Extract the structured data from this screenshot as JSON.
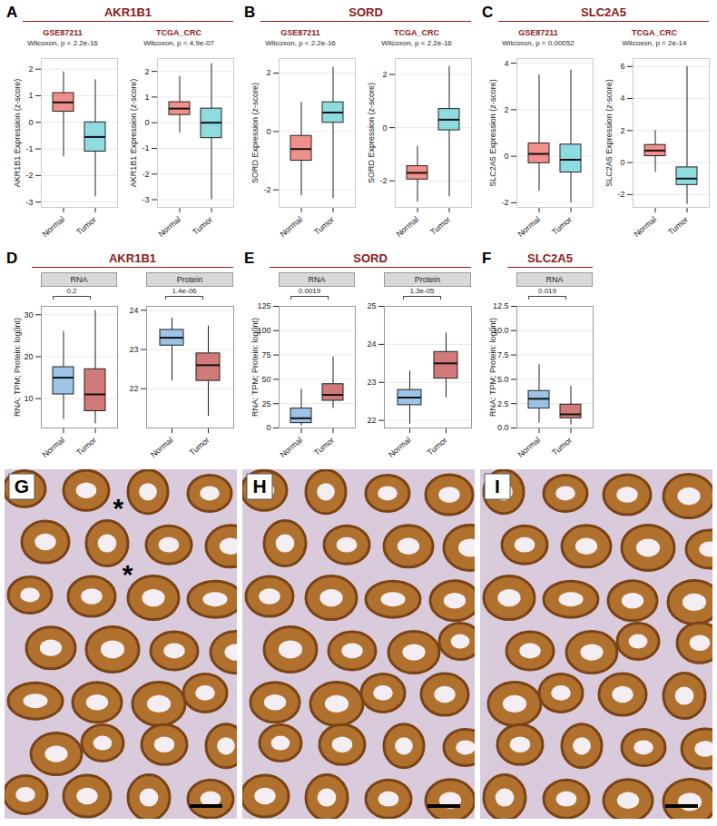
{
  "chart_data": [
    {
      "panel": "A",
      "title": "AKR1B1",
      "subplots": [
        {
          "type": "box",
          "subtitle": "GSE87211",
          "annotation": "Wilcoxon, p < 2.2e-16",
          "ylabel": "AKR1B1 Expression (z-score)",
          "categories": [
            "Normal",
            "Tumor"
          ],
          "colors": [
            "#e8453c",
            "#45c4cc"
          ],
          "boxes": [
            {
              "min": -1.3,
              "q1": 0.4,
              "median": 0.75,
              "q3": 1.1,
              "max": 1.9
            },
            {
              "min": -2.8,
              "q1": -1.1,
              "median": -0.55,
              "q3": 0.0,
              "max": 1.6
            }
          ],
          "ylim": [
            -3.2,
            2.4
          ],
          "yticks": [
            -3,
            -2,
            -1,
            0,
            1,
            2
          ],
          "grid": true
        },
        {
          "type": "box",
          "subtitle": "TCGA_CRC",
          "annotation": "Wilcoxon, p = 4.9e-07",
          "ylabel": "AKR1B1 Expression (z-score)",
          "categories": [
            "Normal",
            "Tumor"
          ],
          "colors": [
            "#e8453c",
            "#45c4cc"
          ],
          "boxes": [
            {
              "min": -0.4,
              "q1": 0.3,
              "median": 0.55,
              "q3": 0.8,
              "max": 1.8
            },
            {
              "min": -3.0,
              "q1": -0.6,
              "median": 0.0,
              "q3": 0.55,
              "max": 2.3
            }
          ],
          "ylim": [
            -3.3,
            2.5
          ],
          "yticks": [
            -3,
            -2,
            -1,
            0,
            1,
            2
          ],
          "grid": true
        }
      ]
    },
    {
      "panel": "B",
      "title": "SORD",
      "subplots": [
        {
          "type": "box",
          "subtitle": "GSE87211",
          "annotation": "Wilcoxon, p < 2.2e-16",
          "ylabel": "SORD Expression (z-score)",
          "categories": [
            "Normal",
            "Tumor"
          ],
          "colors": [
            "#e8453c",
            "#45c4cc"
          ],
          "boxes": [
            {
              "min": -2.2,
              "q1": -1.0,
              "median": -0.6,
              "q3": -0.15,
              "max": 1.0
            },
            {
              "min": -2.3,
              "q1": 0.3,
              "median": 0.65,
              "q3": 1.0,
              "max": 2.2
            }
          ],
          "ylim": [
            -2.6,
            2.5
          ],
          "yticks": [
            -2,
            0,
            2
          ],
          "grid": true
        },
        {
          "type": "box",
          "subtitle": "TCGA_CRC",
          "annotation": "Wilcoxon, p < 2.2e-16",
          "ylabel": "SORD Expression (z-score)",
          "categories": [
            "Normal",
            "Tumor"
          ],
          "colors": [
            "#e8453c",
            "#45c4cc"
          ],
          "boxes": [
            {
              "min": -2.8,
              "q1": -1.95,
              "median": -1.7,
              "q3": -1.45,
              "max": -0.7
            },
            {
              "min": -2.6,
              "q1": -0.1,
              "median": 0.3,
              "q3": 0.7,
              "max": 2.3
            }
          ],
          "ylim": [
            -3.0,
            2.6
          ],
          "yticks": [
            -2,
            0,
            2
          ],
          "grid": true
        }
      ]
    },
    {
      "panel": "C",
      "title": "SLC2A5",
      "subplots": [
        {
          "type": "box",
          "subtitle": "GSE87211",
          "annotation": "Wilcoxon, p = 0.00052",
          "ylabel": "SLC2A5 Expression (z-score)",
          "categories": [
            "Normal",
            "Tumor"
          ],
          "colors": [
            "#e8453c",
            "#45c4cc"
          ],
          "boxes": [
            {
              "min": -1.5,
              "q1": -0.3,
              "median": 0.1,
              "q3": 0.55,
              "max": 3.5
            },
            {
              "min": -2.0,
              "q1": -0.7,
              "median": -0.15,
              "q3": 0.5,
              "max": 3.7
            }
          ],
          "ylim": [
            -2.2,
            4.2
          ],
          "yticks": [
            -2,
            0,
            2,
            4
          ],
          "grid": true
        },
        {
          "type": "box",
          "subtitle": "TCGA_CRC",
          "annotation": "Wilcoxon, p = 2e-14",
          "ylabel": "SLC2A5 Expression (z-score)",
          "categories": [
            "Normal",
            "Tumor"
          ],
          "colors": [
            "#e8453c",
            "#45c4cc"
          ],
          "boxes": [
            {
              "min": -0.6,
              "q1": 0.4,
              "median": 0.75,
              "q3": 1.1,
              "max": 2.0
            },
            {
              "min": -2.6,
              "q1": -1.4,
              "median": -1.0,
              "q3": -0.3,
              "max": 6.0
            }
          ],
          "ylim": [
            -2.8,
            6.5
          ],
          "yticks": [
            -2,
            0,
            2,
            4,
            6
          ],
          "grid": true
        }
      ]
    },
    {
      "panel": "D",
      "title": "AKR1B1",
      "subplots": [
        {
          "type": "box",
          "subtitle": "RNA",
          "annotation": "0.2",
          "ylabel": "RNA: TPM; Protein: log(int)",
          "categories": [
            "Normal",
            "Tumor"
          ],
          "colors": [
            "#5b9bd5",
            "#b22222"
          ],
          "boxes": [
            {
              "min": 5,
              "q1": 11,
              "median": 15,
              "q3": 17.5,
              "max": 26
            },
            {
              "min": 4,
              "q1": 7,
              "median": 11,
              "q3": 17,
              "max": 31
            }
          ],
          "ylim": [
            3,
            32
          ],
          "yticks": [
            10,
            20,
            30
          ],
          "grid": true
        },
        {
          "type": "box",
          "subtitle": "Protein",
          "annotation": "1.4e-06",
          "categories": [
            "Normal",
            "Tumor"
          ],
          "colors": [
            "#5b9bd5",
            "#b22222"
          ],
          "boxes": [
            {
              "min": 22.2,
              "q1": 23.1,
              "median": 23.3,
              "q3": 23.5,
              "max": 23.8
            },
            {
              "min": 21.3,
              "q1": 22.2,
              "median": 22.6,
              "q3": 22.9,
              "max": 23.6
            }
          ],
          "ylim": [
            21,
            24.1
          ],
          "yticks": [
            22,
            23,
            24
          ],
          "grid": true
        }
      ]
    },
    {
      "panel": "E",
      "title": "SORD",
      "subplots": [
        {
          "type": "box",
          "subtitle": "RNA",
          "annotation": "0.0019",
          "ylabel": "RNA: TPM; Protein: log(int)",
          "categories": [
            "Normal",
            "Tumor"
          ],
          "colors": [
            "#5b9bd5",
            "#b22222"
          ],
          "boxes": [
            {
              "min": 2,
              "q1": 5,
              "median": 10,
              "q3": 20,
              "max": 40
            },
            {
              "min": 20,
              "q1": 28,
              "median": 34,
              "q3": 45,
              "max": 73
            }
          ],
          "ylim": [
            0,
            125
          ],
          "yticks": [
            0,
            25,
            50,
            75,
            100,
            125
          ],
          "grid": true
        },
        {
          "type": "box",
          "subtitle": "Protein",
          "annotation": "1.3e-05",
          "categories": [
            "Normal",
            "Tumor"
          ],
          "colors": [
            "#5b9bd5",
            "#b22222"
          ],
          "boxes": [
            {
              "min": 21.9,
              "q1": 22.4,
              "median": 22.6,
              "q3": 22.8,
              "max": 23.3
            },
            {
              "min": 22.6,
              "q1": 23.1,
              "median": 23.5,
              "q3": 23.8,
              "max": 24.3
            }
          ],
          "ylim": [
            21.8,
            25
          ],
          "yticks": [
            22,
            23,
            24,
            25
          ],
          "grid": true
        }
      ]
    },
    {
      "panel": "F",
      "title": "SLC2A5",
      "subplots": [
        {
          "type": "box",
          "subtitle": "RNA",
          "annotation": "0.019",
          "ylabel": "RNA: TPM; Protein: log(int)",
          "categories": [
            "Normal",
            "Tumor"
          ],
          "colors": [
            "#5b9bd5",
            "#b22222"
          ],
          "boxes": [
            {
              "min": 0.5,
              "q1": 2,
              "median": 3,
              "q3": 3.8,
              "max": 6.5
            },
            {
              "min": 0.3,
              "q1": 1,
              "median": 1.4,
              "q3": 2.4,
              "max": 4.3
            }
          ],
          "ylim": [
            0,
            12.5
          ],
          "yticks": [
            {
              "value": 0,
              "label": "0.0"
            },
            2.5,
            {
              "value": 5,
              "label": "5.0"
            },
            7.5,
            {
              "value": 10,
              "label": "10.0"
            },
            12.5
          ],
          "grid": true
        }
      ]
    }
  ],
  "image_panels": [
    {
      "panel": "G",
      "annotations": [
        "*",
        "*"
      ]
    },
    {
      "panel": "H"
    },
    {
      "panel": "I"
    }
  ]
}
